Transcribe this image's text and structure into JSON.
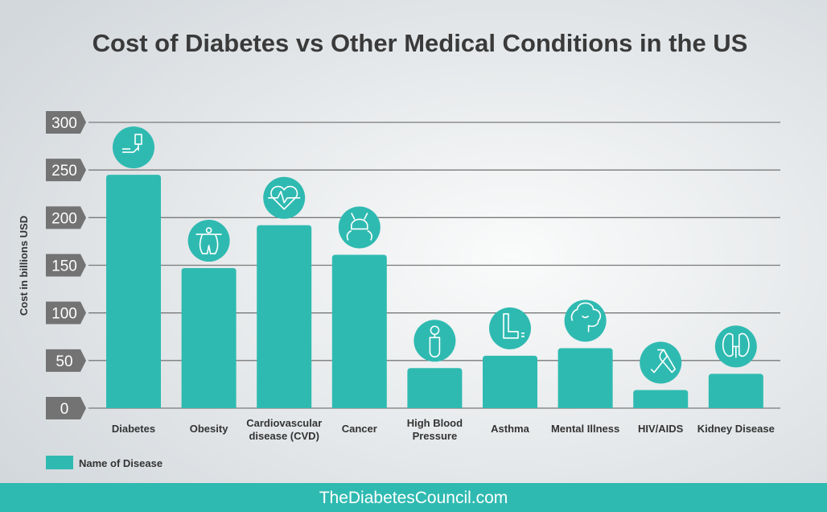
{
  "chart_data": {
    "type": "bar",
    "title": "Cost of Diabetes vs Other Medical Conditions in the US",
    "ylabel": "Cost in billions USD",
    "xlabel": "",
    "ylim": [
      0,
      300
    ],
    "yticks": [
      0,
      50,
      100,
      150,
      200,
      250,
      300
    ],
    "grid": true,
    "legend_position": "bottom-left",
    "categories": [
      [
        "Diabetes"
      ],
      [
        "Obesity"
      ],
      [
        "Cardiovascular",
        "disease (CVD)"
      ],
      [
        "Cancer"
      ],
      [
        "High Blood",
        "Pressure"
      ],
      [
        "Asthma"
      ],
      [
        "Mental Illness"
      ],
      [
        "HIV/AIDS"
      ],
      [
        "Kidney Disease"
      ]
    ],
    "icons": [
      "glucose-meter-icon",
      "obesity-body-icon",
      "heart-pulse-icon",
      "cancer-crab-icon",
      "blood-pressure-bulb-icon",
      "inhaler-icon",
      "brain-icon",
      "awareness-ribbon-icon",
      "kidneys-icon"
    ],
    "series": [
      {
        "name": "Name of Disease",
        "values": [
          245,
          147,
          192,
          161,
          42,
          55,
          63,
          19,
          36
        ]
      }
    ],
    "colors": {
      "bar": "#2fbab1",
      "tick_box": "#737373",
      "grid": "#7a7a7a",
      "title": "#3a3a3a",
      "footer": "#2fbab1"
    }
  },
  "footer": {
    "text": "TheDiabetesCouncil.com"
  }
}
